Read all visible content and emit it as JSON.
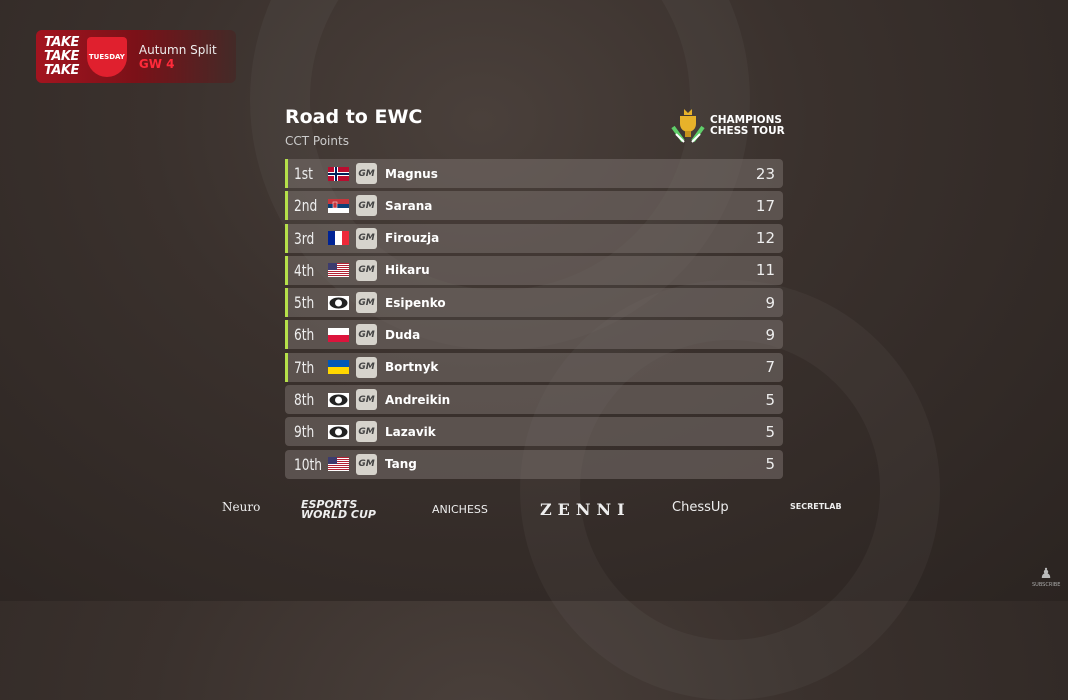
{
  "event": {
    "brand": "TAKE TAKE TAKE",
    "logo": "TITLED TUESDAY",
    "split": "Autumn Split",
    "gw": "GW 4"
  },
  "header": {
    "title": "Road to EWC",
    "subtitle": "CCT Points",
    "tour_logo": "CHAMPIONS CHESS TOUR"
  },
  "accent": "#b5e04a",
  "standings": [
    {
      "rank": "1st",
      "flag": "norway",
      "title": "GM",
      "name": "Magnus",
      "points": "23",
      "qualified": true
    },
    {
      "rank": "2nd",
      "flag": "serbia",
      "title": "GM",
      "name": "Sarana",
      "points": "17",
      "qualified": true
    },
    {
      "rank": "3rd",
      "flag": "france",
      "title": "GM",
      "name": "Firouzja",
      "points": "12",
      "qualified": true
    },
    {
      "rank": "4th",
      "flag": "usa",
      "title": "GM",
      "name": "Hikaru",
      "points": "11",
      "qualified": true
    },
    {
      "rank": "5th",
      "flag": "fide",
      "title": "GM",
      "name": "Esipenko",
      "points": "9",
      "qualified": true
    },
    {
      "rank": "6th",
      "flag": "poland",
      "title": "GM",
      "name": "Duda",
      "points": "9",
      "qualified": true
    },
    {
      "rank": "7th",
      "flag": "ukraine",
      "title": "GM",
      "name": "Bortnyk",
      "points": "7",
      "qualified": true
    },
    {
      "rank": "8th",
      "flag": "fide",
      "title": "GM",
      "name": "Andreikin",
      "points": "5",
      "qualified": false
    },
    {
      "rank": "9th",
      "flag": "fide",
      "title": "GM",
      "name": "Lazavik",
      "points": "5",
      "qualified": false
    },
    {
      "rank": "10th",
      "flag": "usa",
      "title": "GM",
      "name": "Tang",
      "points": "5",
      "qualified": false
    }
  ],
  "sponsors": [
    "Neuro",
    "ESPORTS WORLD CUP",
    "ANICHESS",
    "ZENNI",
    "ChessUp",
    "SECRETLAB"
  ],
  "subscribe": "SUBSCRIBE"
}
